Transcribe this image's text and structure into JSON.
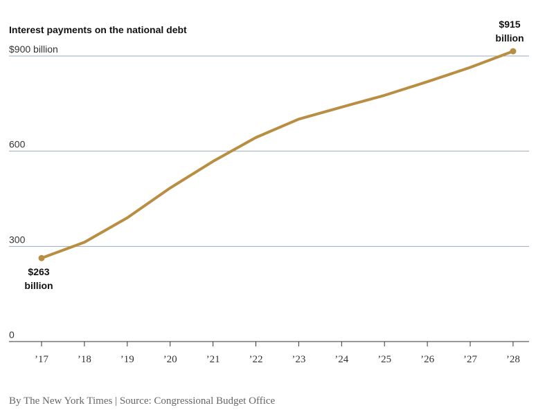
{
  "chart_data": {
    "type": "line",
    "title": "Interest payments on the national debt",
    "categories": [
      "’17",
      "’18",
      "’19",
      "’20",
      "’21",
      "’22",
      "’23",
      "’24",
      "’25",
      "’26",
      "’27",
      "’28"
    ],
    "series": [
      {
        "values": [
          263,
          313,
          390,
          484,
          568,
          643,
          701,
          739,
          776,
          819,
          864,
          915
        ]
      }
    ],
    "ylim": [
      0,
      900
    ],
    "yticks": [
      0,
      300,
      600,
      900
    ],
    "ytick_labels": [
      "0",
      "300",
      "600",
      "$900 billion"
    ],
    "grid": true,
    "line_color": "#b98e42",
    "grid_color": "#9aa8b8",
    "annotations": {
      "start": {
        "value": "$263",
        "unit": "billion"
      },
      "end": {
        "value": "$915",
        "unit": "billion"
      }
    }
  },
  "credit": "By The New York Times | Source: Congressional Budget Office"
}
